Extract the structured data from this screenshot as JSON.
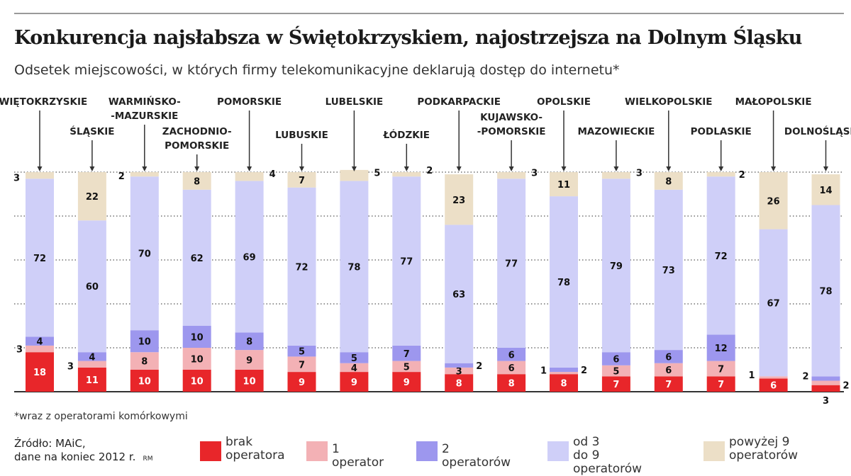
{
  "title": "Konkurencja najsłabsza w Świętokrzyskiem, najostrzejsza na Dolnym Śląsku",
  "subtitle": "Odsetek miejscowości, w których firmy telekomunikacyjne deklarują dostęp do internetu*",
  "footnote": "*wraz z operatorami komórkowymi",
  "source_line1": "Źródło: MAiC,",
  "source_line2": "dane na koniec 2012 r.",
  "author": "RM",
  "colors": {
    "brak": "#e8262a",
    "one": "#f3b1b5",
    "two": "#9d97ee",
    "three_nine": "#cfcff8",
    "above_nine": "#ecdfc7"
  },
  "chart_data": {
    "type": "bar",
    "stacked": true,
    "ylim": [
      0,
      100
    ],
    "grid": true,
    "categories": [
      "ŚWIĘTOKRZYSKIE",
      "ŚLĄSKIE",
      "WARMIŃSKO--MAZURSKIE",
      "ZACHODNIO-POMORSKIE",
      "POMORSKIE",
      "LUBUSKIE",
      "LUBELSKIE",
      "ŁÓDZKIE",
      "PODKARPACKIE",
      "KUJAWSKO--POMORSKIE",
      "OPOLSKIE",
      "MAZOWIECKIE",
      "WIELKOPOLSKIE",
      "PODLASKIE",
      "MAŁOPOLSKIE",
      "DOLNOŚLĄSKIE"
    ],
    "series": [
      {
        "name": "brak operatora",
        "values": [
          18,
          11,
          10,
          10,
          10,
          9,
          9,
          9,
          8,
          8,
          8,
          7,
          7,
          7,
          6,
          3
        ]
      },
      {
        "name": "1 operator",
        "values": [
          3,
          3,
          8,
          10,
          9,
          7,
          4,
          5,
          3,
          6,
          1,
          5,
          6,
          7,
          1,
          2
        ]
      },
      {
        "name": "2 operatorów",
        "values": [
          4,
          4,
          10,
          10,
          8,
          5,
          5,
          7,
          2,
          6,
          2,
          6,
          6,
          12,
          0,
          2
        ]
      },
      {
        "name": "od 3 do 9 operatorów",
        "values": [
          72,
          60,
          70,
          62,
          69,
          72,
          78,
          77,
          63,
          77,
          78,
          79,
          73,
          72,
          67,
          78
        ]
      },
      {
        "name": "powyżej 9 operatorów",
        "values": [
          3,
          22,
          2,
          8,
          4,
          7,
          5,
          2,
          23,
          3,
          11,
          3,
          8,
          2,
          26,
          14
        ]
      }
    ]
  },
  "category_labels": [
    [
      "ŚWIĘTOKRZYSKIE"
    ],
    [
      "ŚLĄSKIE"
    ],
    [
      "WARMIŃSKO-",
      "-MAZURSKIE"
    ],
    [
      "ZACHODNIO-",
      "POMORSKIE"
    ],
    [
      "POMORSKIE"
    ],
    [
      "LUBUSKIE"
    ],
    [
      "LUBELSKIE"
    ],
    [
      "ŁÓDZKIE"
    ],
    [
      "PODKARPACKIE"
    ],
    [
      "KUJAWSKO-",
      "-POMORSKIE"
    ],
    [
      "OPOLSKIE"
    ],
    [
      "MAZOWIECKIE"
    ],
    [
      "WIELKOPOLSKIE"
    ],
    [
      "PODLASKIE"
    ],
    [
      "MAŁOPOLSKIE"
    ],
    [
      "DOLNOŚLĄSKIE"
    ]
  ],
  "legend": [
    {
      "lines": [
        "brak",
        "operatora"
      ],
      "color_key": "brak"
    },
    {
      "lines": [
        "1 operator"
      ],
      "color_key": "one"
    },
    {
      "lines": [
        "2 operatorów"
      ],
      "color_key": "two"
    },
    {
      "lines": [
        "od 3",
        "do 9 operatorów"
      ],
      "color_key": "three_nine"
    },
    {
      "lines": [
        "powyżej 9",
        "operatorów"
      ],
      "color_key": "above_nine"
    }
  ]
}
